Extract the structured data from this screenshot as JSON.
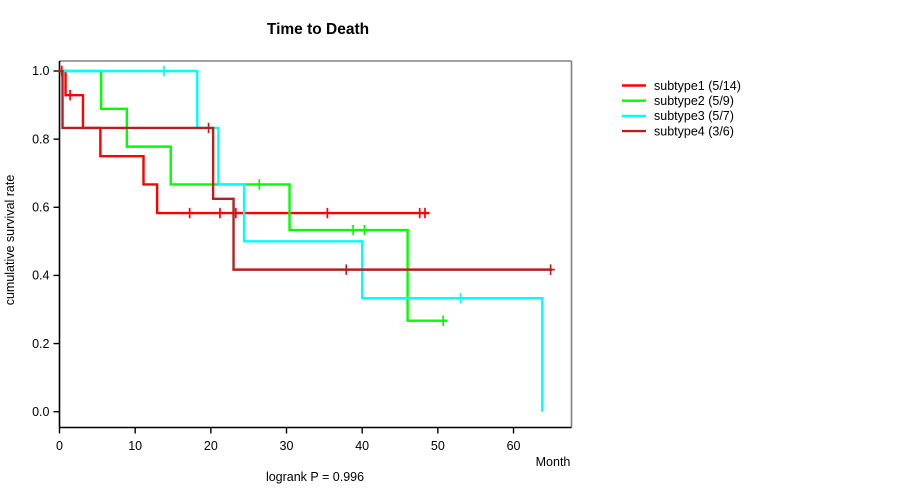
{
  "figure": {
    "title": "Time to Death",
    "caption": "logrank P = 0.996",
    "xlabel": "Month",
    "ylabel": "cumulative survival rate"
  },
  "colors": {
    "background": "#ffffff",
    "axis": "#000000",
    "box_top_right": "#808080",
    "text": "#000000"
  },
  "chart_data": {
    "type": "line",
    "variant": "kaplan-meier-step",
    "title": "Time to Death",
    "xlabel": "Month",
    "ylabel": "cumulative survival rate",
    "caption": "logrank P = 0.996",
    "xlim": [
      0,
      67.7
    ],
    "ylim": [
      0.0,
      1.0
    ],
    "x_ticks": [
      0,
      10,
      20,
      30,
      40,
      50,
      60
    ],
    "y_ticks": [
      0.0,
      0.2,
      0.4,
      0.6,
      0.8,
      1.0
    ],
    "grid": false,
    "legend_position": "right-outside",
    "censor_marker": "plus",
    "series": [
      {
        "name": "subtype1 (5/14)",
        "color": "#FF0000",
        "steps": [
          [
            0,
            1.0
          ],
          [
            0.8,
            0.929
          ],
          [
            3.1,
            0.833
          ],
          [
            5.4,
            0.75
          ],
          [
            11.1,
            0.667
          ],
          [
            12.9,
            0.583
          ]
        ],
        "end": 48.9,
        "censors": [
          [
            0.3,
            1.0
          ],
          [
            1.4,
            0.929
          ],
          [
            17.2,
            0.583
          ],
          [
            21.2,
            0.583
          ],
          [
            23.3,
            0.583
          ],
          [
            35.4,
            0.583
          ],
          [
            47.6,
            0.583
          ],
          [
            48.3,
            0.583
          ]
        ]
      },
      {
        "name": "subtype2 (5/9)",
        "color": "#00FF00",
        "steps": [
          [
            0,
            1.0
          ],
          [
            5.5,
            0.889
          ],
          [
            8.9,
            0.778
          ],
          [
            14.7,
            0.667
          ],
          [
            30.4,
            0.533
          ],
          [
            46.0,
            0.267
          ]
        ],
        "end": 51.2,
        "censors": [
          [
            26.4,
            0.667
          ],
          [
            38.8,
            0.533
          ],
          [
            40.3,
            0.533
          ],
          [
            50.7,
            0.267
          ]
        ]
      },
      {
        "name": "subtype3 (5/7)",
        "color": "#00FFFF",
        "steps": [
          [
            0,
            1.0
          ],
          [
            18.2,
            0.833
          ],
          [
            21.0,
            0.667
          ],
          [
            24.4,
            0.5
          ],
          [
            40.0,
            0.333
          ],
          [
            63.8,
            0.0
          ]
        ],
        "end": 63.8,
        "censors": [
          [
            13.8,
            1.0
          ],
          [
            53.0,
            0.333
          ]
        ]
      },
      {
        "name": "subtype4 (3/6)",
        "color": "#B22222",
        "steps": [
          [
            0,
            1.0
          ],
          [
            0.4,
            0.833
          ],
          [
            20.3,
            0.625
          ],
          [
            23.0,
            0.417
          ]
        ],
        "end": 65.1,
        "censors": [
          [
            19.7,
            0.833
          ],
          [
            37.9,
            0.417
          ],
          [
            64.9,
            0.417
          ]
        ]
      }
    ]
  }
}
